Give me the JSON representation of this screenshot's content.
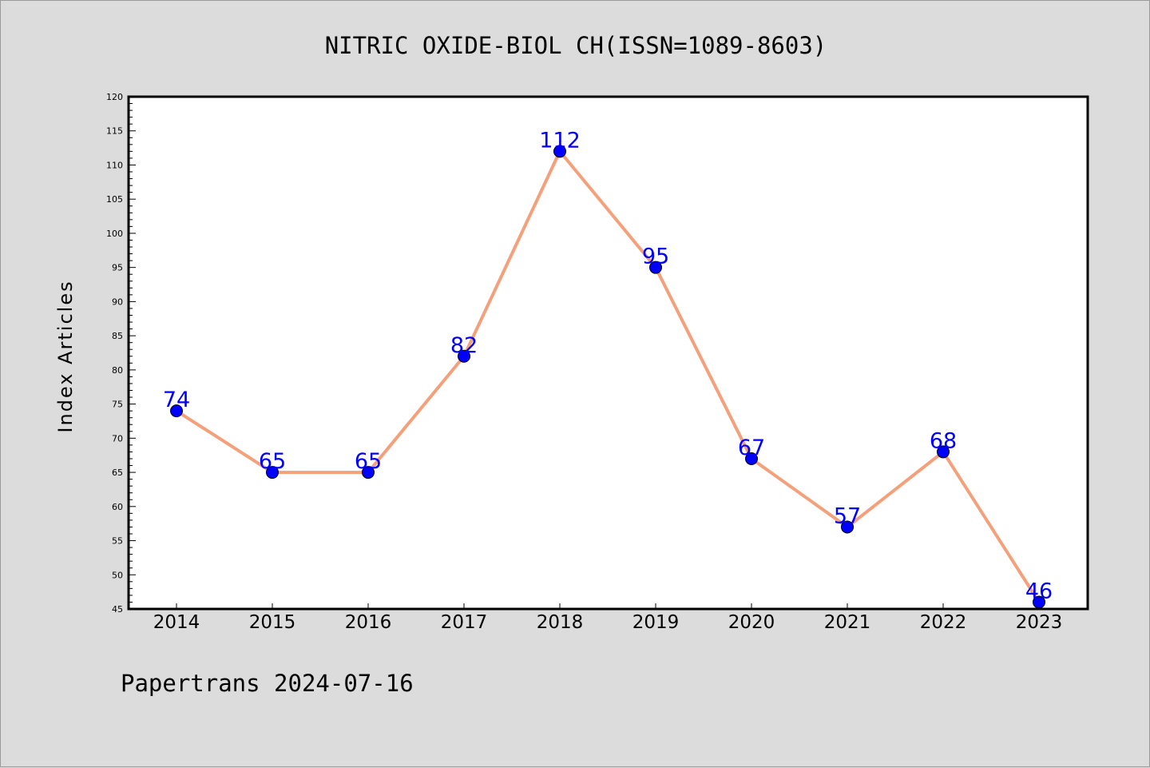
{
  "chart_data": {
    "type": "line",
    "title": "NITRIC OXIDE-BIOL CH(ISSN=1089-8603)",
    "ylabel": "Index Articles",
    "xlabel": "",
    "footer": "Papertrans 2024-07-16",
    "categories": [
      "2014",
      "2015",
      "2016",
      "2017",
      "2018",
      "2019",
      "2020",
      "2021",
      "2022",
      "2023"
    ],
    "series": [
      {
        "values": [
          74,
          65,
          65,
          82,
          112,
          95,
          67,
          57,
          68,
          46
        ]
      }
    ],
    "ylim": [
      45,
      120
    ],
    "ytick_step": 5,
    "grid": false,
    "colors": {
      "line": "#f4a07a",
      "marker": "#0000ff",
      "label": "#0000ff"
    }
  }
}
